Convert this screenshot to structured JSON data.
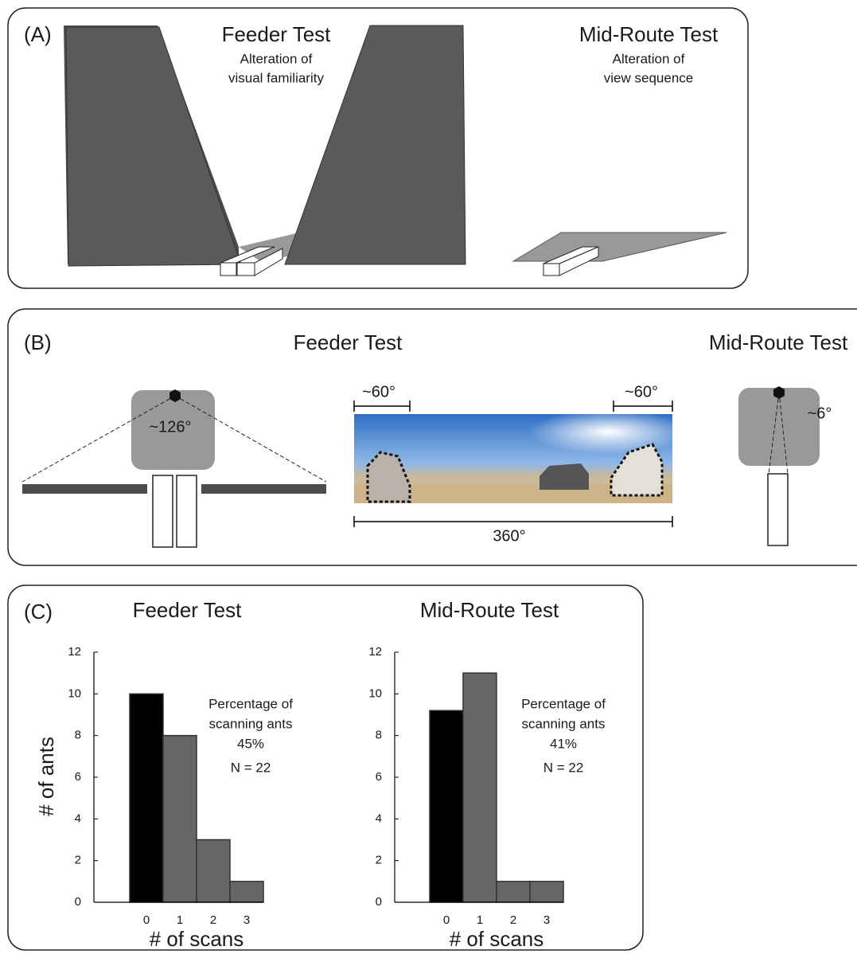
{
  "panels": {
    "a": {
      "label": "(A)",
      "feeder_title": "Feeder Test",
      "feeder_sub": [
        "Alteration of",
        "visual familiarity"
      ],
      "mid_title": "Mid-Route Test",
      "mid_sub": [
        "Alteration of",
        "view sequence"
      ]
    },
    "b": {
      "label": "(B)",
      "feeder_title": "Feeder Test",
      "mid_title": "Mid-Route Test",
      "angle_feeder": "~126°",
      "angle_left": "~60°",
      "angle_right": "~60°",
      "angle_full": "360°",
      "angle_mid": "~6°"
    },
    "c": {
      "label": "(C)"
    }
  },
  "chart_data": [
    {
      "type": "bar",
      "title": "Feeder Test",
      "categories": [
        "0",
        "1",
        "2",
        "3"
      ],
      "values": [
        10,
        8,
        3,
        1
      ],
      "colors": [
        "#000000",
        "#666666",
        "#666666",
        "#666666"
      ],
      "ylim": [
        0,
        12
      ],
      "yticks": [
        0,
        2,
        4,
        6,
        8,
        10,
        12
      ],
      "x_label": "# of scans",
      "y_label": "# of ants",
      "annotations": [
        "Percentage of",
        "scanning ants",
        "45%",
        "N = 22"
      ]
    },
    {
      "type": "bar",
      "title": "Mid-Route Test",
      "categories": [
        "0",
        "1",
        "2",
        "3"
      ],
      "values": [
        9.2,
        11,
        1,
        1
      ],
      "colors": [
        "#000000",
        "#666666",
        "#666666",
        "#666666"
      ],
      "ylim": [
        0,
        12
      ],
      "yticks": [
        0,
        2,
        4,
        6,
        8,
        10,
        12
      ],
      "x_label": "# of scans",
      "annotations": [
        "Percentage of",
        "scanning ants",
        "41%",
        "N = 22"
      ]
    }
  ]
}
